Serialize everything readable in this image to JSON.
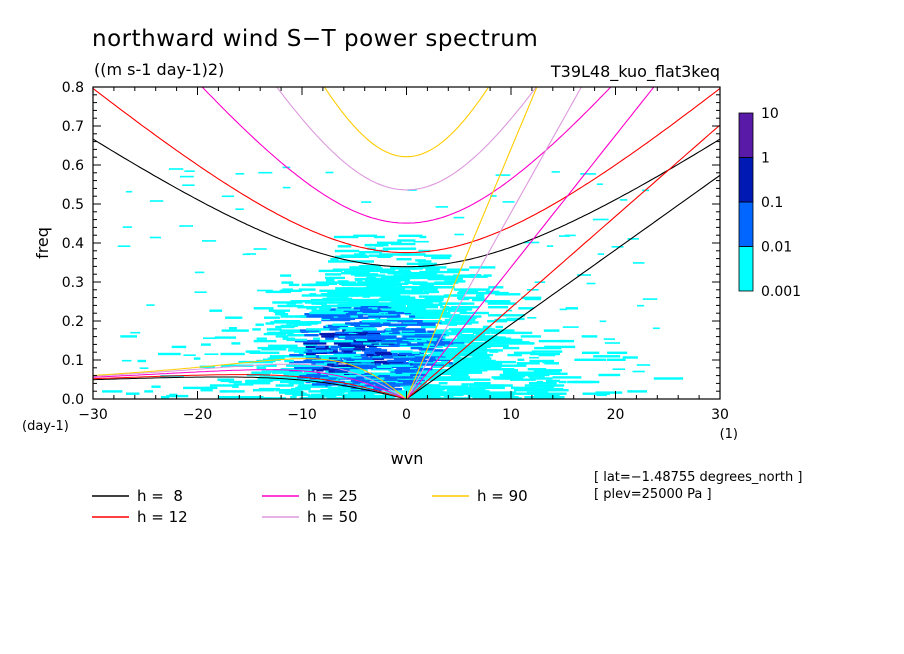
{
  "chart_data": {
    "type": "heatmap",
    "title": "northward wind S−T power spectrum",
    "units": "((m s-1 day-1)2)",
    "run_name": "T39L48_kuo_flat3keq",
    "xlabel": "wvn",
    "x_units": "(1)",
    "ylabel": "freq",
    "y_units": "(day-1)",
    "xlim": [
      -30,
      30
    ],
    "ylim": [
      0,
      0.8
    ],
    "x_ticks": [
      -30,
      -20,
      -10,
      0,
      10,
      20,
      30
    ],
    "x_tick_labels": [
      "−30",
      "−20",
      "−10",
      "0",
      "10",
      "20",
      "30"
    ],
    "y_ticks": [
      0,
      0.1,
      0.2,
      0.3,
      0.4,
      0.5,
      0.6,
      0.7,
      0.8
    ],
    "y_tick_labels": [
      "0.0",
      "0.1",
      "0.2",
      "0.3",
      "0.4",
      "0.5",
      "0.6",
      "0.7",
      "0.8"
    ],
    "colorbar": {
      "levels": [
        0.001,
        0.01,
        0.1,
        1,
        10
      ],
      "labels": [
        "0.001",
        "0.01",
        "0.1",
        "1",
        "10"
      ],
      "colors": [
        "#00ffff",
        "#0066ff",
        "#0019b3",
        "#5a1aa8"
      ]
    },
    "power_regions": [
      {
        "level": "0.001",
        "color": "#00ffff",
        "x": [
          -18,
          20
        ],
        "y": [
          0.0,
          0.4
        ]
      },
      {
        "level": "0.01",
        "color": "#0066ff",
        "x": [
          -12,
          4
        ],
        "y": [
          0.0,
          0.27
        ]
      },
      {
        "level": "0.1",
        "color": "#0019b3",
        "x": [
          -10,
          -2
        ],
        "y": [
          0.05,
          0.2
        ]
      }
    ],
    "dispersion_curves": [
      {
        "label": "h =  8",
        "h": 8,
        "color": "#000000"
      },
      {
        "label": "h = 12",
        "h": 12,
        "color": "#ff0000"
      },
      {
        "label": "h = 25",
        "h": 25,
        "color": "#ff00cc"
      },
      {
        "label": "h = 50",
        "h": 50,
        "color": "#dd99dd"
      },
      {
        "label": "h = 90",
        "h": 90,
        "color": "#ffcc00"
      }
    ],
    "info_lines": [
      "[ lat=−1.48755 degrees_north ]",
      "[ plev=25000 Pa ]"
    ]
  }
}
